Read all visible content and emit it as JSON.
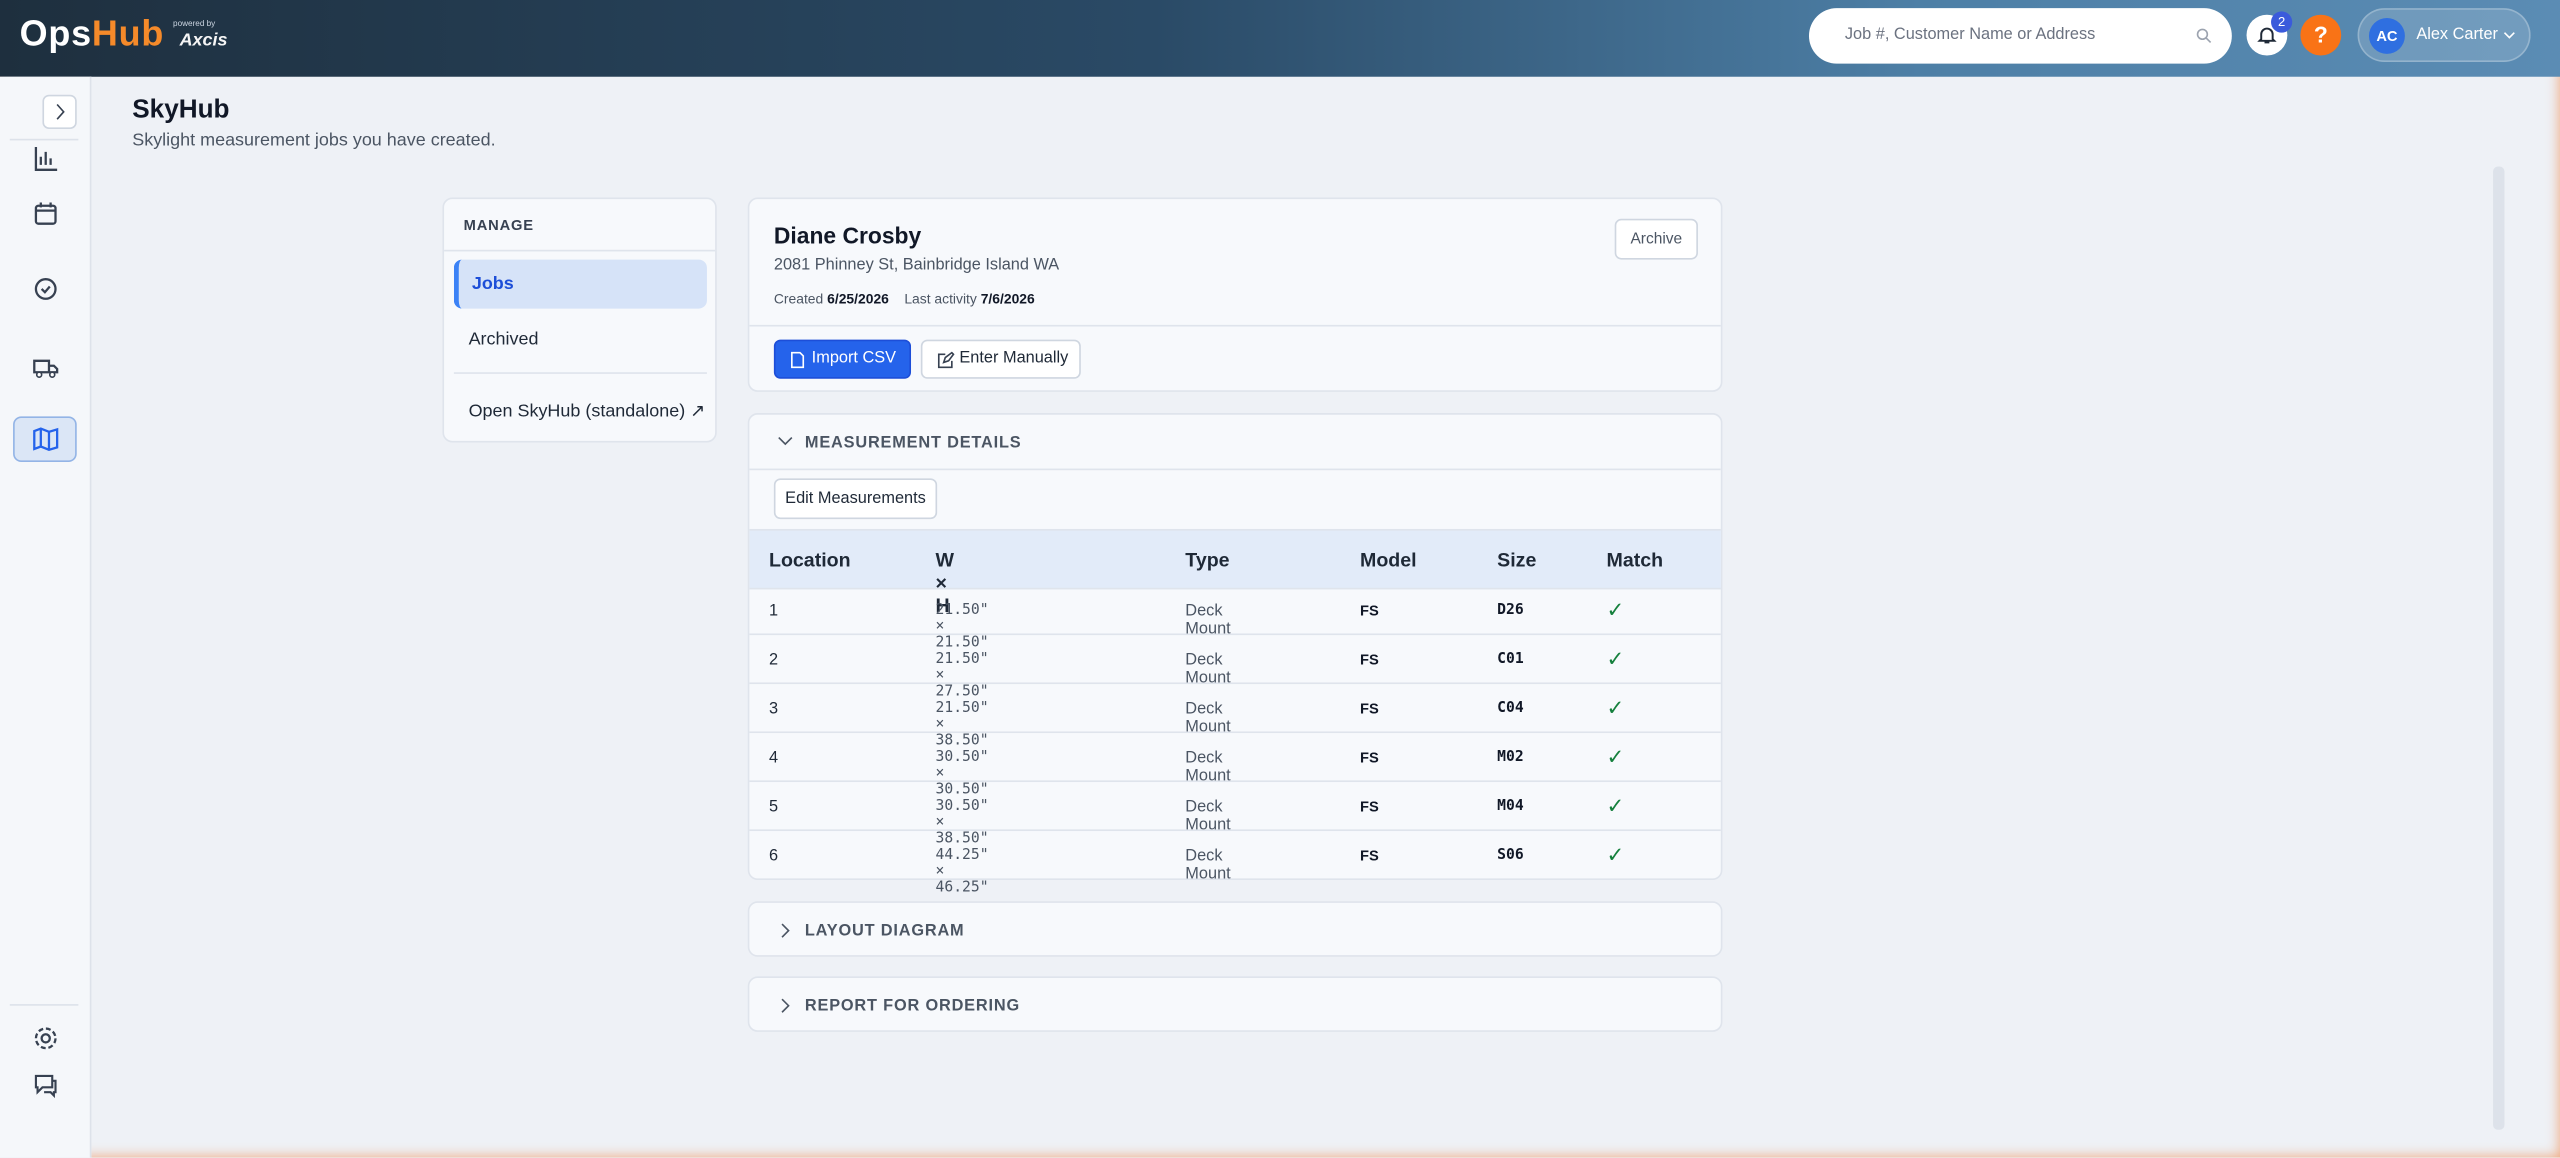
{
  "header": {
    "logo_ops": "Ops",
    "logo_hub": "Hub",
    "powered_by": "powered by",
    "partner": "Axcis",
    "search_placeholder": "Job #, Customer Name or Address",
    "notification_count": "2",
    "help": "?",
    "user_initials": "AC",
    "user_name": "Alex Carter"
  },
  "page": {
    "title": "SkyHub",
    "subtitle": "Skylight measurement jobs you have created."
  },
  "manage": {
    "heading": "MANAGE",
    "items": [
      "Jobs",
      "Archived"
    ],
    "external_link": "Open SkyHub (standalone) ↗"
  },
  "job": {
    "name": "Diane Crosby",
    "address": "2081 Phinney St, Bainbridge Island WA",
    "created_label": "Created",
    "created": "6/25/2026",
    "last_activity_label": "Last activity",
    "last_activity": "7/6/2026",
    "archive_button": "Archive",
    "import_button": "Import CSV",
    "manual_button": "Enter Manually"
  },
  "measurements": {
    "heading": "MEASUREMENT DETAILS",
    "edit_button": "Edit Measurements",
    "columns": [
      "Location",
      "W × H",
      "Type",
      "Model",
      "Size",
      "Match"
    ],
    "rows": [
      [
        "1",
        "21.50\" × 21.50\"",
        "Deck Mount",
        "FS",
        "D26",
        "✓"
      ],
      [
        "2",
        "21.50\" × 27.50\"",
        "Deck Mount",
        "FS",
        "C01",
        "✓"
      ],
      [
        "3",
        "21.50\" × 38.50\"",
        "Deck Mount",
        "FS",
        "C04",
        "✓"
      ],
      [
        "4",
        "30.50\" × 30.50\"",
        "Deck Mount",
        "FS",
        "M02",
        "✓"
      ],
      [
        "5",
        "30.50\" × 38.50\"",
        "Deck Mount",
        "FS",
        "M04",
        "✓"
      ],
      [
        "6",
        "44.25\" × 46.25\"",
        "Deck Mount",
        "FS",
        "S06",
        "✓"
      ]
    ]
  },
  "sections": [
    "LAYOUT DIAGRAM",
    "REPORT FOR ORDERING"
  ]
}
